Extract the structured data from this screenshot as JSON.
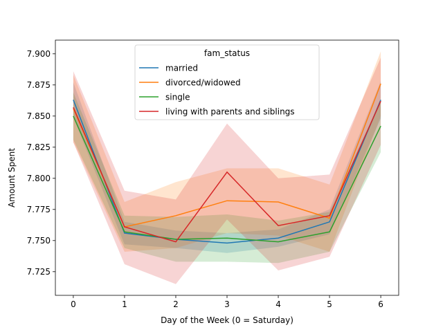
{
  "chart_data": {
    "type": "line",
    "title": "",
    "xlabel": "Day of the Week (0 = Saturday)",
    "ylabel": "Amount Spent",
    "x": [
      0,
      1,
      2,
      3,
      4,
      5,
      6
    ],
    "xlim": [
      -0.35,
      6.35
    ],
    "ylim": [
      7.706,
      7.911
    ],
    "xticks": [
      "0",
      "1",
      "2",
      "3",
      "4",
      "5",
      "6"
    ],
    "yticks": [
      "7.725",
      "7.750",
      "7.775",
      "7.800",
      "7.825",
      "7.850",
      "7.875",
      "7.900"
    ],
    "grid": false,
    "legend": {
      "title": "fam_status",
      "placement": "upper center"
    },
    "series": [
      {
        "name": "married",
        "color": "#1f77b4",
        "values": [
          7.863,
          7.756,
          7.751,
          7.748,
          7.752,
          7.765,
          7.863
        ],
        "ci_low": [
          7.849,
          7.747,
          7.744,
          7.74,
          7.745,
          7.755,
          7.848
        ],
        "ci_high": [
          7.877,
          7.765,
          7.758,
          7.756,
          7.759,
          7.775,
          7.878
        ]
      },
      {
        "name": "divorced/widowed",
        "color": "#ff7f0e",
        "values": [
          7.856,
          7.761,
          7.77,
          7.782,
          7.781,
          7.768,
          7.876
        ],
        "ci_low": [
          7.829,
          7.741,
          7.744,
          7.756,
          7.754,
          7.741,
          7.85
        ],
        "ci_high": [
          7.883,
          7.781,
          7.797,
          7.808,
          7.808,
          7.795,
          7.902
        ]
      },
      {
        "name": "single",
        "color": "#2ca02c",
        "values": [
          7.85,
          7.757,
          7.751,
          7.752,
          7.749,
          7.757,
          7.842
        ],
        "ci_low": [
          7.831,
          7.744,
          7.733,
          7.733,
          7.732,
          7.741,
          7.821
        ],
        "ci_high": [
          7.869,
          7.77,
          7.769,
          7.771,
          7.766,
          7.773,
          7.863
        ]
      },
      {
        "name": "living with parents and siblings",
        "color": "#d62728",
        "values": [
          7.857,
          7.761,
          7.749,
          7.805,
          7.762,
          7.77,
          7.862
        ],
        "ci_low": [
          7.829,
          7.731,
          7.715,
          7.767,
          7.726,
          7.737,
          7.827
        ],
        "ci_high": [
          7.886,
          7.79,
          7.783,
          7.844,
          7.8,
          7.803,
          7.897
        ]
      }
    ]
  }
}
